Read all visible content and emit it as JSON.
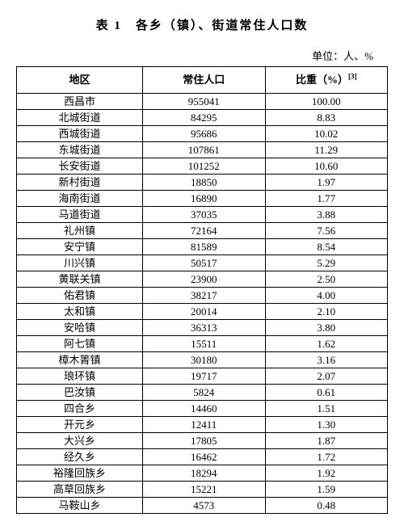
{
  "title": "表 1　各乡（镇）、街道常住人口数",
  "unit": "单位：人、%",
  "footnote_marker": "[3]",
  "columns": [
    "地区",
    "常住人口",
    "比重（%）"
  ],
  "rows": [
    [
      "西昌市",
      "955041",
      "100.00"
    ],
    [
      "北城街道",
      "84295",
      "8.83"
    ],
    [
      "西城街道",
      "95686",
      "10.02"
    ],
    [
      "东城街道",
      "107861",
      "11.29"
    ],
    [
      "长安街道",
      "101252",
      "10.60"
    ],
    [
      "新村街道",
      "18850",
      "1.97"
    ],
    [
      "海南街道",
      "16890",
      "1.77"
    ],
    [
      "马道街道",
      "37035",
      "3.88"
    ],
    [
      "礼州镇",
      "72164",
      "7.56"
    ],
    [
      "安宁镇",
      "81589",
      "8.54"
    ],
    [
      "川兴镇",
      "50517",
      "5.29"
    ],
    [
      "黄联关镇",
      "23900",
      "2.50"
    ],
    [
      "佑君镇",
      "38217",
      "4.00"
    ],
    [
      "太和镇",
      "20014",
      "2.10"
    ],
    [
      "安哈镇",
      "36313",
      "3.80"
    ],
    [
      "阿七镇",
      "15511",
      "1.62"
    ],
    [
      "樟木箐镇",
      "30180",
      "3.16"
    ],
    [
      "琅环镇",
      "19717",
      "2.07"
    ],
    [
      "巴汝镇",
      "5824",
      "0.61"
    ],
    [
      "四合乡",
      "14460",
      "1.51"
    ],
    [
      "开元乡",
      "12411",
      "1.30"
    ],
    [
      "大兴乡",
      "17805",
      "1.87"
    ],
    [
      "经久乡",
      "16462",
      "1.72"
    ],
    [
      "裕隆回族乡",
      "18294",
      "1.92"
    ],
    [
      "高草回族乡",
      "15221",
      "1.59"
    ],
    [
      "马鞍山乡",
      "4573",
      "0.48"
    ]
  ]
}
